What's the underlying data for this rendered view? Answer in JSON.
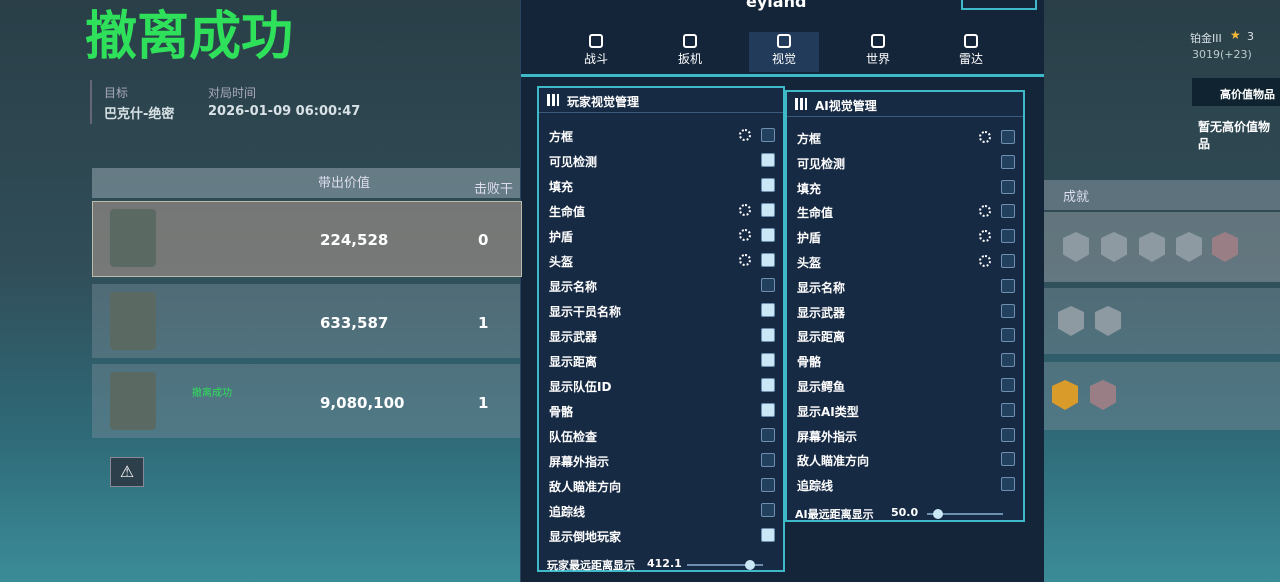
{
  "game": {
    "title": "撤离成功",
    "target_label": "目标",
    "target": "巴克什-绝密",
    "time_label": "对局时间",
    "time": "2026-01-09 06:00:47",
    "rank": "铂金III",
    "stars": "3",
    "score": "3019(+23)",
    "loot_title": "高价值物品",
    "loot_empty": "暂无高价值物品",
    "headers": [
      "带出价值",
      "击败干",
      "成就"
    ],
    "rows": [
      {
        "name": null,
        "value": "224,528",
        "kills": "0"
      },
      {
        "name": null,
        "value": "633,587",
        "kills": "1"
      },
      {
        "name": "撤离成功",
        "value": "9,080,100",
        "kills": "1"
      }
    ]
  },
  "menu": {
    "brand": "eyland",
    "tabs": [
      "战斗",
      "扳机",
      "视觉",
      "世界",
      "雷达"
    ],
    "active_tab": 2,
    "player": {
      "title": "玩家视觉管理",
      "items": [
        {
          "label": "方框",
          "gear": true,
          "checked": false
        },
        {
          "label": "可见检测",
          "gear": false,
          "checked": true
        },
        {
          "label": "填充",
          "gear": false,
          "checked": true
        },
        {
          "label": "生命值",
          "gear": true,
          "checked": true
        },
        {
          "label": "护盾",
          "gear": true,
          "checked": true
        },
        {
          "label": "头盔",
          "gear": true,
          "checked": true
        },
        {
          "label": "显示名称",
          "gear": false,
          "checked": false
        },
        {
          "label": "显示干员名称",
          "gear": false,
          "checked": true
        },
        {
          "label": "显示武器",
          "gear": false,
          "checked": true
        },
        {
          "label": "显示距离",
          "gear": false,
          "checked": true
        },
        {
          "label": "显示队伍ID",
          "gear": false,
          "checked": true
        },
        {
          "label": "骨骼",
          "gear": false,
          "checked": true
        },
        {
          "label": "队伍检查",
          "gear": false,
          "checked": false
        },
        {
          "label": "屏幕外指示",
          "gear": false,
          "checked": false
        },
        {
          "label": "敌人瞄准方向",
          "gear": false,
          "checked": false
        },
        {
          "label": "追踪线",
          "gear": false,
          "checked": false
        },
        {
          "label": "显示倒地玩家",
          "gear": false,
          "checked": true
        }
      ],
      "slider_label": "玩家最远距离显示",
      "slider_value": "412.1"
    },
    "ai": {
      "title": "AI视觉管理",
      "items": [
        {
          "label": "方框",
          "gear": true,
          "checked": false
        },
        {
          "label": "可见检测",
          "gear": false,
          "checked": false
        },
        {
          "label": "填充",
          "gear": false,
          "checked": false
        },
        {
          "label": "生命值",
          "gear": true,
          "checked": false
        },
        {
          "label": "护盾",
          "gear": true,
          "checked": false
        },
        {
          "label": "头盔",
          "gear": true,
          "checked": false
        },
        {
          "label": "显示名称",
          "gear": false,
          "checked": false
        },
        {
          "label": "显示武器",
          "gear": false,
          "checked": false
        },
        {
          "label": "显示距离",
          "gear": false,
          "checked": false
        },
        {
          "label": "骨骼",
          "gear": false,
          "checked": false
        },
        {
          "label": "显示鳄鱼",
          "gear": false,
          "checked": false
        },
        {
          "label": "显示AI类型",
          "gear": false,
          "checked": false
        },
        {
          "label": "屏幕外指示",
          "gear": false,
          "checked": false
        },
        {
          "label": "敌人瞄准方向",
          "gear": false,
          "checked": false
        },
        {
          "label": "追踪线",
          "gear": false,
          "checked": false
        }
      ],
      "slider_label": "AI最远距离显示",
      "slider_value": "50.0"
    }
  }
}
